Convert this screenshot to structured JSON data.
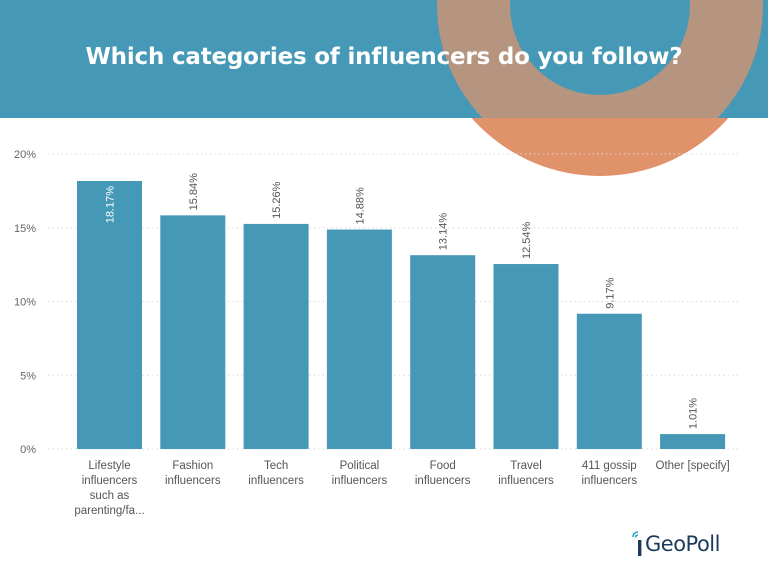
{
  "header": {
    "title": "Which categories of influencers do you follow?"
  },
  "brand": {
    "logo_text": "GeoPoll"
  },
  "colors": {
    "header_bg": "#4699b6",
    "bar": "#4699b6",
    "accent_orange": "#e0926b",
    "logo_text": "#1d3a5c",
    "logo_accent": "#2aa6cc"
  },
  "chart_data": {
    "type": "bar",
    "title": "Which categories of influencers do you follow?",
    "categories": [
      [
        "Lifestyle",
        "influencers",
        "such as",
        "parenting/fa..."
      ],
      [
        "Fashion",
        "influencers"
      ],
      [
        "Tech",
        "influencers"
      ],
      [
        "Political",
        "influencers"
      ],
      [
        "Food",
        "influencers"
      ],
      [
        "Travel",
        "influencers"
      ],
      [
        "411 gossip",
        "influencers"
      ],
      [
        "Other [specify]"
      ]
    ],
    "values": [
      18.17,
      15.84,
      15.26,
      14.88,
      13.14,
      12.54,
      9.17,
      1.01
    ],
    "value_labels": [
      "18.17%",
      "15.84%",
      "15.26%",
      "14.88%",
      "13.14%",
      "12.54%",
      "9.17%",
      "1.01%"
    ],
    "yticks": [
      0,
      5,
      10,
      15,
      20
    ],
    "ytick_labels": [
      "0%",
      "5%",
      "10%",
      "15%",
      "20%"
    ],
    "ylim": [
      0,
      20
    ],
    "grid": true
  }
}
